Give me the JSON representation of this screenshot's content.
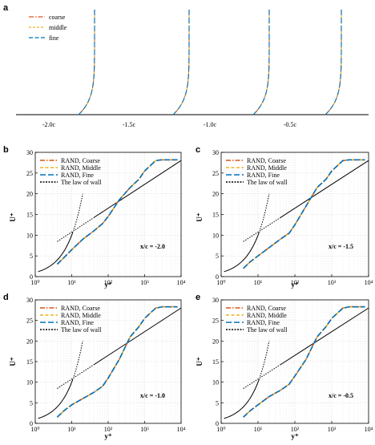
{
  "figure": {
    "panel_a": {
      "letter": "a",
      "legend": [
        "coarse",
        "middle",
        "fine"
      ],
      "station_labels": [
        "-2.0c",
        "-1.5c",
        "-1.0c",
        "-0.5c"
      ]
    },
    "panels": [
      {
        "letter": "b",
        "annotation": "x/c = -2.0",
        "ylabel": "U⁺",
        "xlabel": "y⁺"
      },
      {
        "letter": "c",
        "annotation": "x/c = -1.5",
        "ylabel": "U⁺",
        "xlabel": "y⁺"
      },
      {
        "letter": "d",
        "annotation": "x/c = -1.0",
        "ylabel": "U⁺",
        "xlabel": "y⁺"
      },
      {
        "letter": "e",
        "annotation": "x/c = -0.5",
        "ylabel": "U⁺",
        "xlabel": "y⁺"
      }
    ],
    "legend": [
      "RAND, Coarse",
      "RAND, Middle",
      "RAND, Fine",
      "The law of wall"
    ],
    "x_ticks": [
      "10⁰",
      "10¹",
      "10²",
      "10³",
      "10⁴"
    ],
    "y_ticks": [
      "0",
      "5",
      "10",
      "15",
      "20",
      "25",
      "30"
    ],
    "colors": {
      "coarse": "#d95319",
      "middle": "#edb120",
      "fine": "#0072bd",
      "law": "#000000"
    }
  },
  "chart_data": [
    {
      "type": "line",
      "panel": "a",
      "x_categories": [
        "-2.0c",
        "-1.5c",
        "-1.0c",
        "-0.5c"
      ],
      "series": [
        {
          "name": "coarse"
        },
        {
          "name": "middle"
        },
        {
          "name": "fine"
        }
      ],
      "legend_position": "top-left"
    },
    {
      "type": "line",
      "panel": "b",
      "xscale": "log",
      "xlim": [
        1,
        10000
      ],
      "ylim": [
        0,
        30
      ],
      "grid": true,
      "legend_position": "top-left",
      "series": [
        {
          "name": "RAND, Coarse",
          "x": [
            4,
            6,
            10,
            20,
            40,
            70,
            100,
            200,
            400,
            700,
            1000,
            2000,
            3000,
            5000,
            8000
          ],
          "y": [
            3,
            4.5,
            6.5,
            9,
            11,
            12.8,
            14.5,
            18.5,
            21.5,
            23.5,
            25.5,
            28,
            28.2,
            28.2,
            28.2
          ]
        },
        {
          "name": "RAND, Middle",
          "x": [
            4,
            6,
            10,
            20,
            40,
            70,
            100,
            200,
            400,
            700,
            1000,
            2000,
            3000,
            5000,
            8000
          ],
          "y": [
            3,
            4.5,
            6.5,
            9,
            11,
            12.8,
            14.5,
            18.5,
            21.5,
            23.5,
            25.5,
            28,
            28.2,
            28.2,
            28.2
          ]
        },
        {
          "name": "RAND, Fine",
          "x": [
            4,
            6,
            10,
            20,
            40,
            70,
            100,
            200,
            400,
            700,
            1000,
            2000,
            3000,
            5000,
            8000
          ],
          "y": [
            3,
            4.5,
            6.5,
            9,
            11,
            12.8,
            14.5,
            18.5,
            21.5,
            23.5,
            25.5,
            28,
            28.2,
            28.2,
            28.2
          ]
        },
        {
          "name": "The law of wall",
          "x": [
            1.5,
            10000
          ],
          "y": [
            1.5,
            28
          ]
        }
      ]
    },
    {
      "type": "line",
      "panel": "c",
      "xscale": "log",
      "xlim": [
        1,
        10000
      ],
      "ylim": [
        0,
        30
      ],
      "grid": true,
      "legend_position": "top-left",
      "series": [
        {
          "name": "RAND, Coarse",
          "x": [
            4,
            6,
            10,
            20,
            40,
            70,
            100,
            200,
            400,
            700,
            1000,
            2000,
            3000,
            5000,
            8000
          ],
          "y": [
            2,
            3.5,
            5,
            7,
            9,
            10.5,
            12.5,
            17,
            21.5,
            23.5,
            25.5,
            28,
            28.2,
            28.2,
            28.2
          ]
        },
        {
          "name": "RAND, Middle",
          "x": [
            4,
            6,
            10,
            20,
            40,
            70,
            100,
            200,
            400,
            700,
            1000,
            2000,
            3000,
            5000,
            8000
          ],
          "y": [
            2,
            3.5,
            5,
            7,
            9,
            10.5,
            12.5,
            17,
            21.5,
            23.5,
            25.5,
            28,
            28.2,
            28.2,
            28.2
          ]
        },
        {
          "name": "RAND, Fine",
          "x": [
            4,
            6,
            10,
            20,
            40,
            70,
            100,
            200,
            400,
            700,
            1000,
            2000,
            3000,
            5000,
            8000
          ],
          "y": [
            2,
            3.5,
            5,
            7,
            9,
            10.5,
            12.5,
            17,
            21.5,
            23.5,
            25.5,
            28,
            28.2,
            28.2,
            28.2
          ]
        },
        {
          "name": "The law of wall",
          "x": [
            1.5,
            10000
          ],
          "y": [
            1.5,
            28
          ]
        }
      ]
    },
    {
      "type": "line",
      "panel": "d",
      "xscale": "log",
      "xlim": [
        1,
        10000
      ],
      "ylim": [
        0,
        30
      ],
      "grid": true,
      "legend_position": "top-left",
      "series": [
        {
          "name": "RAND, Coarse",
          "x": [
            4,
            6,
            10,
            20,
            40,
            70,
            100,
            200,
            400,
            700,
            1000,
            2000,
            3000,
            5000,
            8000
          ],
          "y": [
            1.5,
            3,
            4.5,
            6,
            7.5,
            9,
            11,
            15.5,
            21,
            23.5,
            25.5,
            28,
            28.3,
            28.3,
            28.3
          ]
        },
        {
          "name": "RAND, Middle",
          "x": [
            4,
            6,
            10,
            20,
            40,
            70,
            100,
            200,
            400,
            700,
            1000,
            2000,
            3000,
            5000,
            8000
          ],
          "y": [
            1.5,
            3,
            4.5,
            6,
            7.5,
            9,
            11,
            15.5,
            21,
            23.5,
            25.5,
            28,
            28.3,
            28.3,
            28.3
          ]
        },
        {
          "name": "RAND, Fine",
          "x": [
            4,
            6,
            10,
            20,
            40,
            70,
            100,
            200,
            400,
            700,
            1000,
            2000,
            3000,
            5000,
            8000
          ],
          "y": [
            1.5,
            3,
            4.5,
            6,
            7.5,
            9,
            11,
            15.5,
            21,
            23.5,
            25.5,
            28,
            28.3,
            28.3,
            28.3
          ]
        },
        {
          "name": "The law of wall",
          "x": [
            1.5,
            10000
          ],
          "y": [
            1.5,
            28
          ]
        }
      ]
    },
    {
      "type": "line",
      "panel": "e",
      "xscale": "log",
      "xlim": [
        1,
        10000
      ],
      "ylim": [
        0,
        30
      ],
      "grid": true,
      "legend_position": "top-left",
      "series": [
        {
          "name": "RAND, Coarse",
          "x": [
            4,
            6,
            10,
            20,
            40,
            70,
            100,
            200,
            400,
            700,
            1000,
            2000,
            3000,
            5000,
            8000
          ],
          "y": [
            1.5,
            3,
            4.5,
            6.5,
            8,
            9.5,
            11.5,
            15.5,
            21,
            23.5,
            25.5,
            28,
            28.3,
            28.3,
            28.3
          ]
        },
        {
          "name": "RAND, Middle",
          "x": [
            4,
            6,
            10,
            20,
            40,
            70,
            100,
            200,
            400,
            700,
            1000,
            2000,
            3000,
            5000,
            8000
          ],
          "y": [
            1.5,
            3,
            4.5,
            6.5,
            8,
            9.5,
            11.5,
            15.5,
            21,
            23.5,
            25.5,
            28,
            28.3,
            28.3,
            28.3
          ]
        },
        {
          "name": "RAND, Fine",
          "x": [
            4,
            6,
            10,
            20,
            40,
            70,
            100,
            200,
            400,
            700,
            1000,
            2000,
            3000,
            5000,
            8000
          ],
          "y": [
            1.5,
            3,
            4.5,
            6.5,
            8,
            9.5,
            11.5,
            15.5,
            21,
            23.5,
            25.5,
            28,
            28.3,
            28.3,
            28.3
          ]
        },
        {
          "name": "The law of wall",
          "x": [
            1.5,
            10000
          ],
          "y": [
            1.5,
            28
          ]
        }
      ]
    }
  ]
}
